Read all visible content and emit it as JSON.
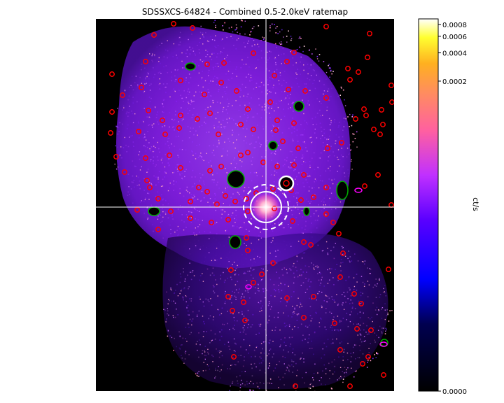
{
  "chart_data": {
    "type": "heatmap",
    "title": "SDSSXCS-64824 - Combined 0.5-2.0keV ratemap",
    "colormap": "gnuplot2",
    "background_color": "#000000",
    "crosshair_color": "#ffffff",
    "colorbar": {
      "label": "ct/s",
      "scale": "log",
      "range": [
        0.0,
        0.0009
      ],
      "ticks": [
        {
          "value": 0.0008,
          "label": "0.0008"
        },
        {
          "value": 0.0006,
          "label": "0.0006"
        },
        {
          "value": 0.0004,
          "label": "0.0004"
        },
        {
          "value": 0.0002,
          "label": "0.0002"
        },
        {
          "value": 0.0,
          "label": "0.0000"
        }
      ]
    },
    "region_colors": {
      "point_source": "#ff0000",
      "extended_source": "#00aa00",
      "other": "#ff00ff",
      "target_aperture": "#ffffff"
    }
  }
}
